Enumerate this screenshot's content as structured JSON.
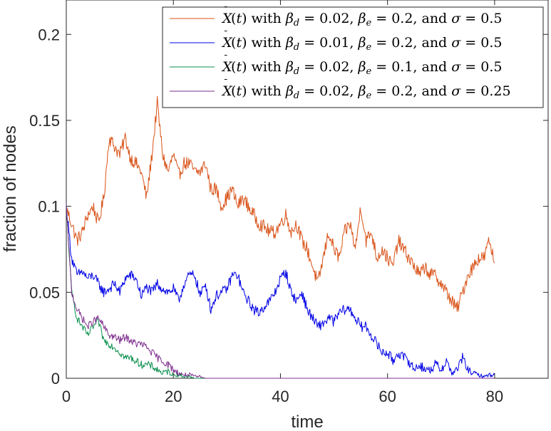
{
  "chart_data": {
    "type": "line",
    "title": "",
    "xlabel": "time",
    "ylabel": "fraction of nodes",
    "xlim": [
      0,
      90
    ],
    "ylim": [
      0,
      0.22
    ],
    "xticks": [
      0,
      20,
      40,
      60,
      80
    ],
    "xtick_labels": [
      "0",
      "20",
      "40",
      "60",
      "80"
    ],
    "yticks": [
      0,
      0.05,
      0.1,
      0.15,
      0.2
    ],
    "ytick_labels": [
      "0",
      "0.05",
      "0.1",
      "0.15",
      "0.2"
    ],
    "grid": false,
    "legend_position": "top-right",
    "series": [
      {
        "name": "X̄(t) with β_d = 0.02, β_e = 0.2, and σ = 0.5",
        "color": "#D95319",
        "x": [
          0,
          1,
          2,
          3,
          4,
          5,
          6,
          7,
          8,
          9,
          10,
          11,
          12,
          13,
          14,
          15,
          16,
          17,
          18,
          19,
          20,
          21,
          22,
          23,
          24,
          25,
          26,
          27,
          28,
          29,
          30,
          31,
          32,
          33,
          34,
          35,
          36,
          37,
          38,
          39,
          40,
          41,
          42,
          43,
          44,
          45,
          46,
          47,
          48,
          49,
          50,
          51,
          52,
          53,
          54,
          55,
          56,
          57,
          58,
          59,
          60,
          61,
          62,
          63,
          64,
          65,
          66,
          67,
          68,
          69,
          70,
          71,
          72,
          73,
          74,
          75,
          76,
          77,
          78,
          79,
          80
        ],
        "y": [
          0.099,
          0.09,
          0.08,
          0.085,
          0.095,
          0.1,
          0.09,
          0.105,
          0.14,
          0.135,
          0.13,
          0.14,
          0.128,
          0.125,
          0.12,
          0.105,
          0.13,
          0.16,
          0.13,
          0.12,
          0.13,
          0.118,
          0.125,
          0.125,
          0.12,
          0.12,
          0.125,
          0.11,
          0.11,
          0.1,
          0.105,
          0.11,
          0.1,
          0.105,
          0.1,
          0.095,
          0.09,
          0.088,
          0.085,
          0.085,
          0.09,
          0.095,
          0.085,
          0.09,
          0.08,
          0.075,
          0.065,
          0.055,
          0.07,
          0.085,
          0.075,
          0.07,
          0.085,
          0.09,
          0.075,
          0.1,
          0.08,
          0.085,
          0.07,
          0.075,
          0.07,
          0.065,
          0.08,
          0.075,
          0.07,
          0.065,
          0.06,
          0.065,
          0.06,
          0.06,
          0.055,
          0.05,
          0.045,
          0.04,
          0.05,
          0.06,
          0.065,
          0.07,
          0.07,
          0.08,
          0.067
        ]
      },
      {
        "name": "X̄(t) with β_d = 0.01, β_e = 0.2, and σ = 0.5",
        "color": "#0000E6",
        "x": [
          0,
          1,
          2,
          3,
          4,
          5,
          6,
          7,
          8,
          9,
          10,
          11,
          12,
          13,
          14,
          15,
          16,
          17,
          18,
          19,
          20,
          21,
          22,
          23,
          24,
          25,
          26,
          27,
          28,
          29,
          30,
          31,
          32,
          33,
          34,
          35,
          36,
          37,
          38,
          39,
          40,
          41,
          42,
          43,
          44,
          45,
          46,
          47,
          48,
          49,
          50,
          51,
          52,
          53,
          54,
          55,
          56,
          57,
          58,
          59,
          60,
          61,
          62,
          63,
          64,
          65,
          66,
          67,
          68,
          69,
          70,
          71,
          72,
          73,
          74,
          75,
          76,
          77,
          78,
          79,
          80
        ],
        "y": [
          0.1,
          0.07,
          0.06,
          0.062,
          0.058,
          0.06,
          0.055,
          0.05,
          0.052,
          0.055,
          0.05,
          0.058,
          0.06,
          0.058,
          0.048,
          0.053,
          0.05,
          0.055,
          0.052,
          0.05,
          0.052,
          0.045,
          0.055,
          0.06,
          0.06,
          0.048,
          0.055,
          0.04,
          0.048,
          0.05,
          0.052,
          0.06,
          0.06,
          0.05,
          0.045,
          0.04,
          0.038,
          0.042,
          0.045,
          0.05,
          0.058,
          0.062,
          0.05,
          0.045,
          0.05,
          0.04,
          0.035,
          0.03,
          0.032,
          0.035,
          0.033,
          0.038,
          0.04,
          0.04,
          0.035,
          0.03,
          0.03,
          0.025,
          0.02,
          0.015,
          0.015,
          0.01,
          0.015,
          0.012,
          0.01,
          0.005,
          0.008,
          0.005,
          0.005,
          0.008,
          0.005,
          0.01,
          0.003,
          0.005,
          0.012,
          0.005,
          0.003,
          0.002,
          0.001,
          0.002,
          0.002
        ]
      },
      {
        "name": "X̄(t) with β_d = 0.02, β_e = 0.1, and σ = 0.5",
        "color": "#0A8F4E",
        "x": [
          0,
          1,
          2,
          3,
          4,
          5,
          6,
          7,
          8,
          9,
          10,
          11,
          12,
          13,
          14,
          15,
          16,
          17,
          18,
          19,
          20,
          21,
          22,
          23,
          24,
          25,
          26,
          27,
          28,
          29,
          30
        ],
        "y": [
          0.1,
          0.05,
          0.035,
          0.03,
          0.025,
          0.03,
          0.033,
          0.022,
          0.02,
          0.018,
          0.015,
          0.012,
          0.012,
          0.01,
          0.008,
          0.008,
          0.007,
          0.005,
          0.003,
          0.004,
          0.002,
          0.002,
          0.001,
          0.001,
          0.0,
          0.0,
          0.0,
          0.0,
          0.0,
          0.0,
          0.0
        ]
      },
      {
        "name": "X̄(t) with β_d = 0.02, β_e = 0.2, and σ = 0.25",
        "color": "#7E2F8E",
        "x": [
          0,
          1,
          2,
          3,
          4,
          5,
          6,
          7,
          8,
          9,
          10,
          11,
          12,
          13,
          14,
          15,
          16,
          17,
          18,
          19,
          20,
          21,
          22,
          23,
          24,
          25,
          26,
          27,
          28,
          29,
          30,
          32,
          35,
          40,
          45,
          50,
          55,
          60,
          65,
          70,
          75,
          80
        ],
        "y": [
          0.1,
          0.05,
          0.04,
          0.035,
          0.03,
          0.033,
          0.035,
          0.03,
          0.025,
          0.024,
          0.022,
          0.024,
          0.022,
          0.02,
          0.02,
          0.018,
          0.015,
          0.012,
          0.01,
          0.008,
          0.005,
          0.003,
          0.002,
          0.002,
          0.001,
          0.001,
          0.0,
          0.0,
          0.0,
          0.0,
          0.0,
          0.0,
          0.0,
          0.0,
          0.0,
          0.0,
          0.0,
          0.0,
          0.0,
          0.0,
          0.0,
          0.0
        ]
      }
    ]
  },
  "legend": [
    {
      "prefix": "with",
      "bd": "0.02,",
      "be": "0.2,",
      "and": "and",
      "sigma": "0.5"
    },
    {
      "prefix": "with",
      "bd": "0.01,",
      "be": "0.2,",
      "and": "and",
      "sigma": "0.5"
    },
    {
      "prefix": "with",
      "bd": "0.02,",
      "be": "0.1,",
      "and": "and",
      "sigma": "0.5"
    },
    {
      "prefix": "with",
      "bd": "0.02,",
      "be": "0.2,",
      "and": "and",
      "sigma": "0.25"
    }
  ]
}
